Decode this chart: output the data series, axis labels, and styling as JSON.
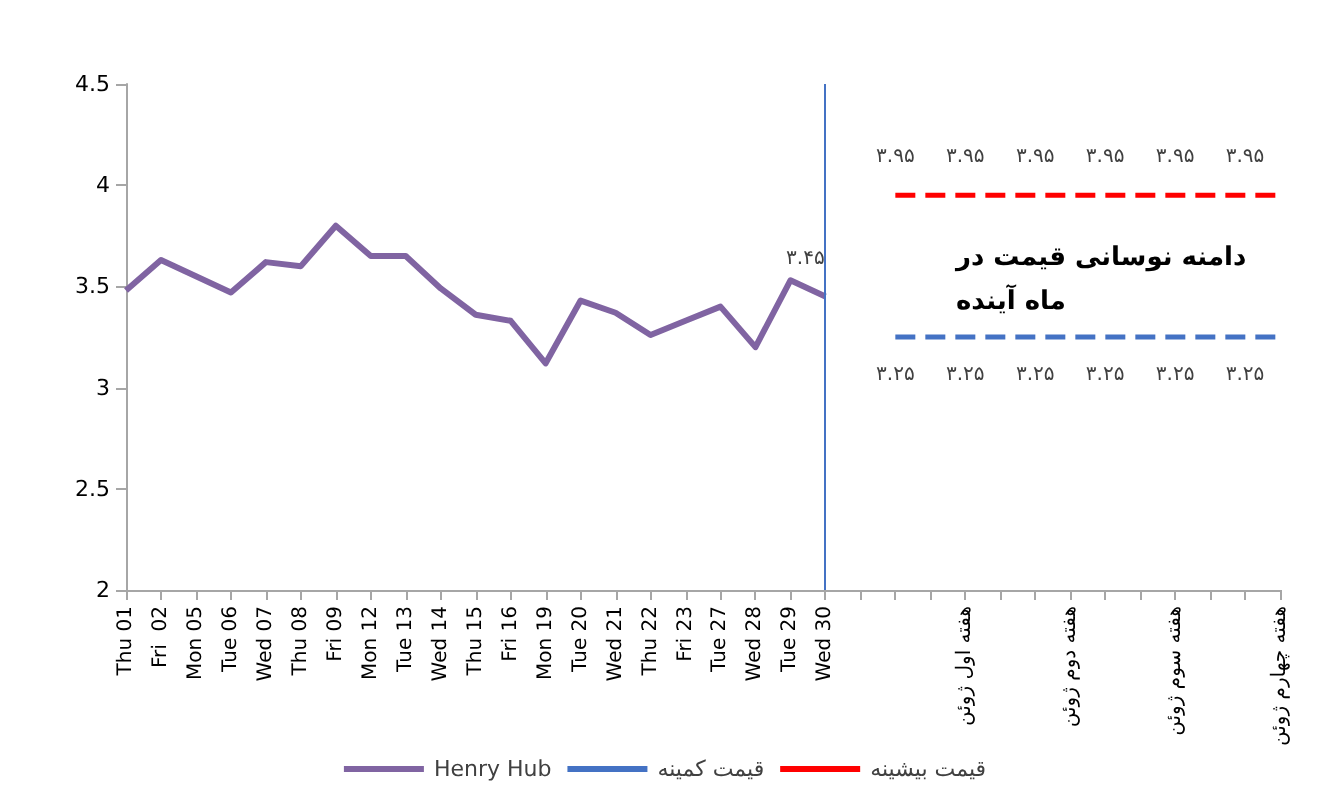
{
  "chart_data": {
    "type": "line",
    "categories": [
      "Thu 01",
      "Fri  02",
      "Mon 05",
      "Tue 06",
      "Wed 07",
      "Thu 08",
      "Fri 09",
      "Mon 12",
      "Tue 13",
      "Wed 14",
      "Thu 15",
      "Fri 16",
      "Mon 19",
      "Tue 20",
      "Wed 21",
      "Thu 22",
      "Fri 23",
      "Tue 27",
      "Wed 28",
      "Tue 29",
      "Wed 30",
      null,
      null,
      null,
      "هفته اول ژوئن",
      null,
      null,
      "هفته دوم ژوئن",
      null,
      null,
      "هفته سوم ژوئن",
      null,
      null,
      "هفته چهارم ژوئن"
    ],
    "series": [
      {
        "name": "Henry Hub",
        "color": "#8064a2",
        "line_style": "solid",
        "values": [
          3.48,
          3.63,
          3.55,
          3.47,
          3.62,
          3.6,
          3.8,
          3.65,
          3.65,
          3.49,
          3.36,
          3.33,
          3.12,
          3.43,
          3.37,
          3.26,
          3.33,
          3.4,
          3.2,
          3.53,
          3.45,
          null,
          null,
          null,
          null,
          null,
          null,
          null,
          null,
          null,
          null,
          null,
          null,
          null
        ],
        "value_labels": [
          null,
          null,
          null,
          null,
          null,
          null,
          null,
          null,
          null,
          null,
          null,
          null,
          null,
          null,
          null,
          null,
          null,
          null,
          null,
          null,
          "۳.۴۵",
          null,
          null,
          null,
          null,
          null,
          null,
          null,
          null,
          null,
          null,
          null,
          null,
          null
        ]
      },
      {
        "name": "قیمت کمینه",
        "color": "#4472c4",
        "line_style": "dashed",
        "values": [
          null,
          null,
          null,
          null,
          null,
          null,
          null,
          null,
          null,
          null,
          null,
          null,
          null,
          null,
          null,
          null,
          null,
          null,
          null,
          null,
          null,
          null,
          3.25,
          3.25,
          3.25,
          3.25,
          3.25,
          3.25,
          3.25,
          3.25,
          3.25,
          3.25,
          3.25,
          3.25
        ],
        "value_labels": [
          null,
          null,
          null,
          null,
          null,
          null,
          null,
          null,
          null,
          null,
          null,
          null,
          null,
          null,
          null,
          null,
          null,
          null,
          null,
          null,
          null,
          null,
          "۳.۲۵",
          null,
          "۳.۲۵",
          null,
          "۳.۲۵",
          null,
          "۳.۲۵",
          null,
          "۳.۲۵",
          null,
          "۳.۲۵",
          null
        ]
      },
      {
        "name": "قیمت بیشینه",
        "color": "#ff0000",
        "line_style": "dashed",
        "values": [
          null,
          null,
          null,
          null,
          null,
          null,
          null,
          null,
          null,
          null,
          null,
          null,
          null,
          null,
          null,
          null,
          null,
          null,
          null,
          null,
          null,
          null,
          3.95,
          3.95,
          3.95,
          3.95,
          3.95,
          3.95,
          3.95,
          3.95,
          3.95,
          3.95,
          3.95,
          3.95
        ],
        "value_labels": [
          null,
          null,
          null,
          null,
          null,
          null,
          null,
          null,
          null,
          null,
          null,
          null,
          null,
          null,
          null,
          null,
          null,
          null,
          null,
          null,
          null,
          null,
          "۳.۹۵",
          null,
          "۳.۹۵",
          null,
          "۳.۹۵",
          null,
          "۳.۹۵",
          null,
          "۳.۹۵",
          null,
          "۳.۹۵",
          null
        ]
      }
    ],
    "ylim": [
      2,
      4.5
    ],
    "yticks": [
      2,
      2.5,
      3,
      3.5,
      4,
      4.5
    ],
    "ref_lines": [
      {
        "axis": "x",
        "value": "Wed 30",
        "color": "#4472c4",
        "line_style": "solid"
      }
    ],
    "annotations": [
      "دامنه نوسانی قیمت در\nماه آینده"
    ],
    "grid": false,
    "legend": "bottom",
    "marker": "none"
  }
}
